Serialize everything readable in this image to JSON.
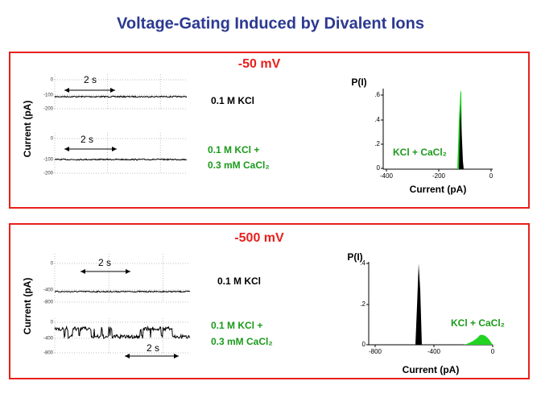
{
  "title": "Voltage-Gating Induced by Divalent Ions",
  "panels": [
    {
      "voltage": "-50 mV",
      "y_label": "Current (pA)",
      "traces": [
        {
          "ticks": [
            "0",
            "-100",
            "-200"
          ],
          "scale": "2 s",
          "label": [
            "0.1 M KCl"
          ]
        },
        {
          "ticks": [
            "0",
            "-100",
            "-200"
          ],
          "scale": "2 s",
          "label": [
            "0.1 M KCl +",
            "0.3 mM CaCl₂"
          ]
        }
      ],
      "histogram": {
        "y_label": "P(I)",
        "yticks": [
          ".6",
          ".4",
          ".2",
          "0"
        ],
        "xticks": [
          "-400",
          "-200",
          "0"
        ],
        "x_label": "Current (pA)",
        "legend": "KCl + CaCl₂"
      }
    },
    {
      "voltage": "-500 mV",
      "y_label": "Current (pA)",
      "traces": [
        {
          "ticks": [
            "0",
            "-400",
            "-800"
          ],
          "scale": "2 s",
          "label": [
            "0.1 M KCl"
          ]
        },
        {
          "ticks": [
            "0",
            "-400",
            "-800"
          ],
          "scale": "2 s",
          "label": [
            "0.1 M KCl +",
            "0.3 mM CaCl₂"
          ]
        }
      ],
      "histogram": {
        "y_label": "P(I)",
        "yticks": [
          ".4",
          ".2",
          "0"
        ],
        "xticks": [
          "-800",
          "-400",
          "0"
        ],
        "x_label": "Current (pA)",
        "legend": "KCl + CaCl₂"
      }
    }
  ]
}
